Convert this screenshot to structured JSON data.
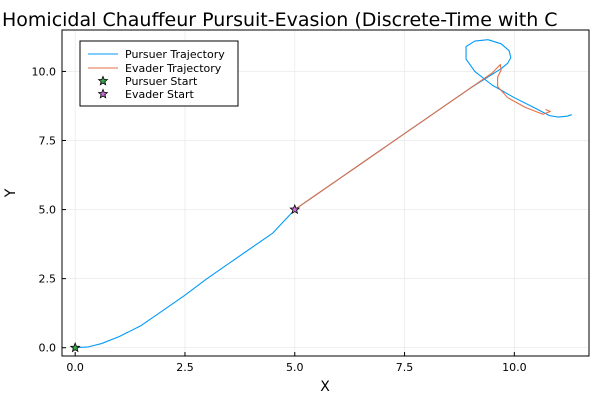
{
  "chart_data": {
    "type": "line",
    "title": "Homicidal Chauffeur Pursuit-Evasion (Discrete-Time with C",
    "xlabel": "X",
    "ylabel": "Y",
    "xlim": [
      -0.3,
      11.7
    ],
    "ylim": [
      -0.3,
      11.5
    ],
    "xticks": [
      0,
      2.5,
      5,
      7.5,
      10
    ],
    "xtick_labels": [
      "0.0",
      "2.5",
      "5.0",
      "7.5",
      "10.0"
    ],
    "yticks": [
      0,
      2.5,
      5,
      7.5,
      10
    ],
    "ytick_labels": [
      "0.0",
      "2.5",
      "5.0",
      "7.5",
      "10.0"
    ],
    "grid": true,
    "legend_position": "top-left",
    "series": [
      {
        "name": "Pursuer Trajectory",
        "color": "#009AFA",
        "x": [
          0.0,
          0.3,
          0.6,
          1.0,
          1.5,
          2.0,
          2.5,
          3.0,
          3.5,
          4.0,
          4.5,
          5.0,
          5.5,
          6.0,
          6.5,
          7.0,
          7.5,
          8.0,
          8.5,
          9.0,
          9.4,
          9.7,
          9.85,
          9.92,
          9.88,
          9.7,
          9.4,
          9.1,
          8.9,
          8.9,
          9.1,
          9.5,
          10.0,
          10.5,
          10.8,
          11.0,
          11.2,
          11.3
        ],
        "y": [
          0.0,
          0.03,
          0.15,
          0.4,
          0.8,
          1.35,
          1.9,
          2.5,
          3.05,
          3.6,
          4.15,
          5.0,
          5.55,
          6.1,
          6.65,
          7.2,
          7.75,
          8.3,
          8.85,
          9.4,
          9.8,
          10.1,
          10.3,
          10.5,
          10.75,
          11.0,
          11.15,
          11.1,
          10.9,
          10.45,
          10.0,
          9.5,
          9.05,
          8.65,
          8.4,
          8.35,
          8.38,
          8.43
        ]
      },
      {
        "name": "Evader Trajectory",
        "color": "#E26F46",
        "x": [
          5.0,
          5.5,
          6.0,
          6.5,
          7.0,
          7.5,
          8.0,
          8.5,
          9.0,
          9.5,
          9.68,
          9.7,
          9.62,
          9.62,
          9.85,
          10.25,
          10.65,
          10.82,
          10.72
        ],
        "y": [
          5.0,
          5.55,
          6.1,
          6.65,
          7.2,
          7.75,
          8.3,
          8.85,
          9.4,
          9.95,
          10.25,
          10.05,
          9.8,
          9.45,
          9.05,
          8.7,
          8.45,
          8.55,
          8.62
        ]
      }
    ],
    "markers": [
      {
        "name": "Pursuer Start",
        "color": "#3DA44D",
        "x": 0.0,
        "y": 0.0
      },
      {
        "name": "Evader Start",
        "color": "#C271D2",
        "x": 5.0,
        "y": 5.0
      }
    ]
  }
}
